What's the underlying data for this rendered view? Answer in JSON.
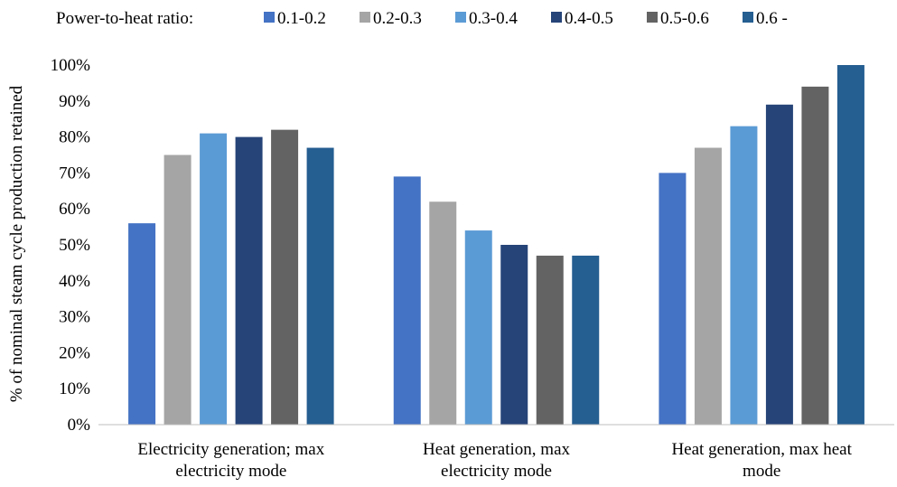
{
  "chart_data": {
    "type": "bar",
    "legend_title": "Power-to-heat ratio:",
    "legend_position": "top",
    "categories": [
      [
        "Electricity generation; max",
        "electricity mode"
      ],
      [
        "Heat generation, max",
        "electricity mode"
      ],
      [
        "Heat generation, max heat",
        "mode"
      ]
    ],
    "series": [
      {
        "name": "0.1-0.2",
        "color": "#4472c4",
        "values": [
          56,
          69,
          70
        ]
      },
      {
        "name": "0.2-0.3",
        "color": "#a5a5a5",
        "values": [
          75,
          62,
          77
        ]
      },
      {
        "name": "0.3-0.4",
        "color": "#5b9bd5",
        "values": [
          81,
          54,
          83
        ]
      },
      {
        "name": "0.4-0.5",
        "color": "#264478",
        "values": [
          80,
          50,
          89
        ]
      },
      {
        "name": "0.5-0.6",
        "color": "#636363",
        "values": [
          82,
          47,
          94
        ]
      },
      {
        "name": "0.6 -",
        "color": "#255e91",
        "values": [
          77,
          47,
          100
        ]
      }
    ],
    "ylabel": "% of nominal steam cycle production retained",
    "ylim": [
      0,
      100
    ],
    "yticks": [
      0,
      10,
      20,
      30,
      40,
      50,
      60,
      70,
      80,
      90,
      100
    ],
    "ytick_suffix": "%",
    "grid": false
  }
}
